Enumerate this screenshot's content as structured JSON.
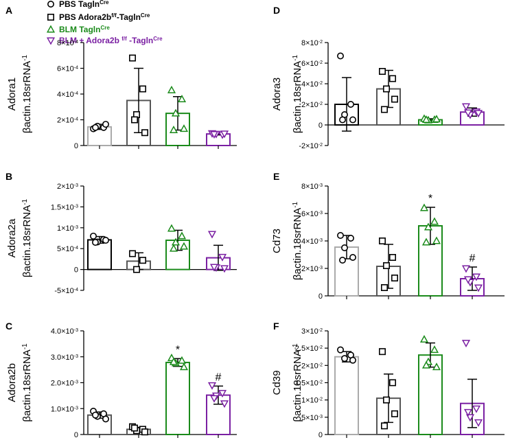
{
  "legend": [
    {
      "label": "PBS Tagln",
      "sup": "Cre",
      "color": "#000000",
      "marker": "circle"
    },
    {
      "label": "PBS Adora2b",
      "sup": "f/f",
      "label2": "-Tagln",
      "sup2": "Cre",
      "color": "#000000",
      "marker": "square"
    },
    {
      "label": "BLM Tagln",
      "sup": "Cre",
      "color": "#1a8a1a",
      "marker": "triangle"
    },
    {
      "label": "BLM + Adora2b ",
      "sup": "f/f",
      "label2": " -Tagln",
      "sup2": "Cre",
      "color": "#7a1fa2",
      "marker": "triangle-down"
    }
  ],
  "chart_data": [
    {
      "panel": "A",
      "type": "bar",
      "gene": "Adora1",
      "ylabel": "βactin.18srRNA",
      "ylabel_sup": "-1",
      "ylim": [
        0,
        0.0008
      ],
      "yticks": [
        {
          "v": 0,
          "base": "0",
          "exp": ""
        },
        {
          "v": 0.0002,
          "base": "2×10",
          "exp": "-4"
        },
        {
          "v": 0.0004,
          "base": "4×10",
          "exp": "-4"
        },
        {
          "v": 0.0006,
          "base": "6×10",
          "exp": "-4"
        },
        {
          "v": 0.0008,
          "base": "8×10",
          "exp": "-4"
        }
      ],
      "groups": [
        {
          "mean": 0.000145,
          "sd": 2e-05,
          "points": [
            0.00013,
            0.00014,
            0.00015,
            0.000165,
            0.00014
          ],
          "bar_color": "#aaaaaa",
          "marker_color": "#000000",
          "marker": "circle",
          "annotation": ""
        },
        {
          "mean": 0.00035,
          "sd": 0.00025,
          "points": [
            0.00068,
            0.00044,
            0.00024,
            0.0001,
            0.0002
          ],
          "bar_color": "#555555",
          "marker_color": "#000000",
          "marker": "square",
          "annotation": ""
        },
        {
          "mean": 0.00025,
          "sd": 0.00013,
          "points": [
            0.00043,
            0.00036,
            0.00025,
            0.00013,
            0.00012
          ],
          "bar_color": "#1a8a1a",
          "marker_color": "#1a8a1a",
          "marker": "triangle",
          "annotation": ""
        },
        {
          "mean": 9e-05,
          "sd": 8e-06,
          "points": [
            9.5e-05,
            8.5e-05,
            9e-05,
            9.2e-05,
            8.8e-05
          ],
          "bar_color": "#7a1fa2",
          "marker_color": "#7a1fa2",
          "marker": "triangle-down",
          "annotation": ""
        }
      ]
    },
    {
      "panel": "B",
      "type": "bar",
      "gene": "Adora2a",
      "ylabel": "βactin.18srRNA",
      "ylabel_sup": "-1",
      "ylim": [
        -0.0005,
        0.002
      ],
      "yticks": [
        {
          "v": -0.0005,
          "base": "-5×10",
          "exp": "-4"
        },
        {
          "v": 0,
          "base": "0",
          "exp": ""
        },
        {
          "v": 0.0005,
          "base": "5×10",
          "exp": "-4"
        },
        {
          "v": 0.001,
          "base": "1×10",
          "exp": "-3"
        },
        {
          "v": 0.0015,
          "base": "1.5×10",
          "exp": "-3"
        },
        {
          "v": 0.002,
          "base": "2×10",
          "exp": "-3"
        }
      ],
      "groups": [
        {
          "mean": 0.00071,
          "sd": 8e-05,
          "points": [
            0.0008,
            0.00072,
            0.00066,
            0.0007,
            0.00065
          ],
          "bar_color": "#000000",
          "marker_color": "#000000",
          "marker": "circle",
          "annotation": ""
        },
        {
          "mean": 0.0002,
          "sd": 0.0002,
          "points": [
            0.00038,
            0.00022,
            0.0
          ],
          "bar_color": "#555555",
          "marker_color": "#000000",
          "marker": "square",
          "annotation": ""
        },
        {
          "mean": 0.0007,
          "sd": 0.00024,
          "points": [
            0.00098,
            0.0008,
            0.00065,
            0.00055,
            0.0005
          ],
          "bar_color": "#1a8a1a",
          "marker_color": "#1a8a1a",
          "marker": "triangle",
          "annotation": ""
        },
        {
          "mean": 0.00028,
          "sd": 0.0003,
          "points": [
            0.00085,
            0.0003,
            5e-05,
            3e-05,
            6e-05
          ],
          "bar_color": "#7a1fa2",
          "marker_color": "#7a1fa2",
          "marker": "triangle-down",
          "annotation": ""
        }
      ]
    },
    {
      "panel": "C",
      "type": "bar",
      "gene": "Adora2b",
      "ylabel": "βactin.18srRNA",
      "ylabel_sup": "-1",
      "ylim": [
        0,
        0.004
      ],
      "yticks": [
        {
          "v": 0,
          "base": "0",
          "exp": ""
        },
        {
          "v": 0.001,
          "base": "1.0×10",
          "exp": "-3"
        },
        {
          "v": 0.002,
          "base": "2.0×10",
          "exp": "-3"
        },
        {
          "v": 0.003,
          "base": "3.0×10",
          "exp": "-3"
        },
        {
          "v": 0.004,
          "base": "4.0×10",
          "exp": "-3"
        }
      ],
      "groups": [
        {
          "mean": 0.00075,
          "sd": 0.00012,
          "points": [
            0.0009,
            0.0008,
            0.0007,
            0.0006,
            0.00075
          ],
          "bar_color": "#555555",
          "marker_color": "#000000",
          "marker": "circle",
          "annotation": ""
        },
        {
          "mean": 0.0002,
          "sd": 8e-05,
          "points": [
            0.0003,
            0.0002,
            0.00015,
            0.0001,
            0.00025
          ],
          "bar_color": "#555555",
          "marker_color": "#000000",
          "marker": "square",
          "annotation": ""
        },
        {
          "mean": 0.00278,
          "sd": 0.00015,
          "points": [
            0.00295,
            0.00285,
            0.00275,
            0.0026,
            0.0028
          ],
          "bar_color": "#1a8a1a",
          "marker_color": "#1a8a1a",
          "marker": "triangle",
          "annotation": "*"
        },
        {
          "mean": 0.00152,
          "sd": 0.00035,
          "points": [
            0.0019,
            0.0016,
            0.0015,
            0.0012,
            0.0014
          ],
          "bar_color": "#7a1fa2",
          "marker_color": "#7a1fa2",
          "marker": "triangle-down",
          "annotation": "#"
        }
      ]
    },
    {
      "panel": "D",
      "type": "bar",
      "gene": "Adora3",
      "ylabel": "βactin.18srRNA",
      "ylabel_sup": "-1",
      "ylim": [
        -0.02,
        0.08
      ],
      "yticks": [
        {
          "v": -0.02,
          "base": "-2×10",
          "exp": "-2"
        },
        {
          "v": 0,
          "base": "0",
          "exp": ""
        },
        {
          "v": 0.02,
          "base": "2×10",
          "exp": "-2"
        },
        {
          "v": 0.04,
          "base": "4×10",
          "exp": "-2"
        },
        {
          "v": 0.06,
          "base": "6×10",
          "exp": "-2"
        },
        {
          "v": 0.08,
          "base": "8×10",
          "exp": "-2"
        }
      ],
      "groups": [
        {
          "mean": 0.02,
          "sd": 0.026,
          "points": [
            0.067,
            0.02,
            0.01,
            0.005,
            0.005
          ],
          "bar_color": "#000000",
          "marker_color": "#000000",
          "marker": "circle",
          "annotation": ""
        },
        {
          "mean": 0.035,
          "sd": 0.018,
          "points": [
            0.052,
            0.045,
            0.035,
            0.025,
            0.015
          ],
          "bar_color": "#555555",
          "marker_color": "#000000",
          "marker": "square",
          "annotation": ""
        },
        {
          "mean": 0.005,
          "sd": 0.001,
          "points": [
            0.006,
            0.005,
            0.0045,
            0.0055,
            0.005
          ],
          "bar_color": "#1a8a1a",
          "marker_color": "#1a8a1a",
          "marker": "triangle",
          "annotation": ""
        },
        {
          "mean": 0.0125,
          "sd": 0.004,
          "points": [
            0.018,
            0.013,
            0.01,
            0.0115,
            0.012
          ],
          "bar_color": "#7a1fa2",
          "marker_color": "#7a1fa2",
          "marker": "triangle-down",
          "annotation": ""
        }
      ]
    },
    {
      "panel": "E",
      "type": "bar",
      "gene": "Cd73",
      "ylabel": "βactin.18srRNA",
      "ylabel_sup": "-1",
      "ylim": [
        0,
        0.008
      ],
      "yticks": [
        {
          "v": 0,
          "base": "0",
          "exp": ""
        },
        {
          "v": 0.002,
          "base": "2×10",
          "exp": "-3"
        },
        {
          "v": 0.004,
          "base": "4×10",
          "exp": "-3"
        },
        {
          "v": 0.006,
          "base": "6×10",
          "exp": "-3"
        },
        {
          "v": 0.008,
          "base": "8×10",
          "exp": "-3"
        }
      ],
      "groups": [
        {
          "mean": 0.00355,
          "sd": 0.00085,
          "points": [
            0.0044,
            0.0042,
            0.0035,
            0.0028,
            0.0026
          ],
          "bar_color": "#aaaaaa",
          "marker_color": "#000000",
          "marker": "circle",
          "annotation": ""
        },
        {
          "mean": 0.00215,
          "sd": 0.0016,
          "points": [
            0.004,
            0.0028,
            0.0022,
            0.0013,
            0.0006
          ],
          "bar_color": "#555555",
          "marker_color": "#000000",
          "marker": "square",
          "annotation": ""
        },
        {
          "mean": 0.0051,
          "sd": 0.00135,
          "points": [
            0.0064,
            0.0054,
            0.005,
            0.004,
            0.0039
          ],
          "bar_color": "#1a8a1a",
          "marker_color": "#1a8a1a",
          "marker": "triangle",
          "annotation": "*"
        },
        {
          "mean": 0.00125,
          "sd": 0.00085,
          "points": [
            0.002,
            0.0014,
            0.001,
            0.0006,
            0.0012
          ],
          "bar_color": "#7a1fa2",
          "marker_color": "#7a1fa2",
          "marker": "triangle-down",
          "annotation": "#"
        }
      ]
    },
    {
      "panel": "F",
      "type": "bar",
      "gene": "Cd39",
      "ylabel": "βactin.18srRNA",
      "ylabel_sup": "-1",
      "ylim": [
        0,
        0.03
      ],
      "yticks": [
        {
          "v": 0,
          "base": "0",
          "exp": ""
        },
        {
          "v": 0.005,
          "base": "5×10",
          "exp": "-3"
        },
        {
          "v": 0.01,
          "base": "1×10",
          "exp": "-2"
        },
        {
          "v": 0.015,
          "base": "1.5×10",
          "exp": "-2"
        },
        {
          "v": 0.02,
          "base": "2×10",
          "exp": "-2"
        },
        {
          "v": 0.025,
          "base": "2.5×10",
          "exp": "-2"
        },
        {
          "v": 0.03,
          "base": "3×10",
          "exp": "-2"
        }
      ],
      "groups": [
        {
          "mean": 0.0225,
          "sd": 0.0015,
          "points": [
            0.0245,
            0.023,
            0.022,
            0.0215
          ],
          "bar_color": "#aaaaaa",
          "marker_color": "#000000",
          "marker": "circle",
          "annotation": ""
        },
        {
          "mean": 0.0105,
          "sd": 0.007,
          "points": [
            0.024,
            0.015,
            0.01,
            0.006,
            0.0025
          ],
          "bar_color": "#555555",
          "marker_color": "#000000",
          "marker": "square",
          "annotation": ""
        },
        {
          "mean": 0.023,
          "sd": 0.0035,
          "points": [
            0.0275,
            0.0245,
            0.021,
            0.0195,
            0.02
          ],
          "bar_color": "#1a8a1a",
          "marker_color": "#1a8a1a",
          "marker": "triangle",
          "annotation": ""
        },
        {
          "mean": 0.009,
          "sd": 0.007,
          "points": [
            0.0265,
            0.0075,
            0.005,
            0.0035,
            0.0065
          ],
          "bar_color": "#7a1fa2",
          "marker_color": "#7a1fa2",
          "marker": "triangle-down",
          "annotation": ""
        }
      ]
    }
  ]
}
